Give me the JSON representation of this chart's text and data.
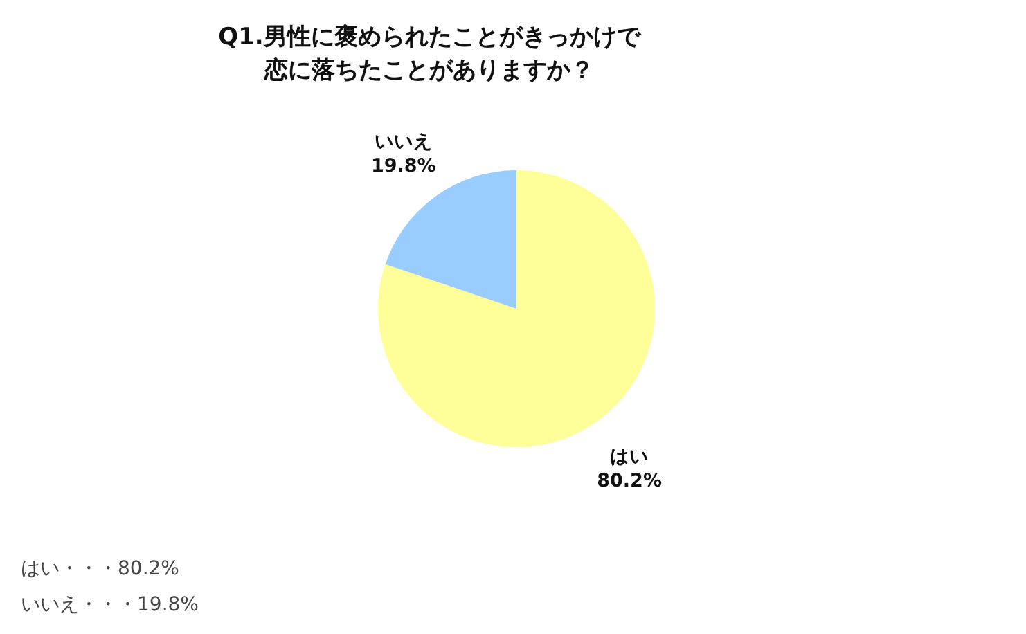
{
  "chart_data": {
    "type": "pie",
    "title": "Q1.男性に褒められたことがきっかけで恋に落ちたことがありますか？",
    "categories": [
      "はい",
      "いいえ"
    ],
    "values": [
      80.2,
      19.8
    ],
    "colors": [
      "#ffff99",
      "#99ccff"
    ],
    "value_labels": [
      "80.2%",
      "19.8%"
    ],
    "annotations": [
      "はい・・・80.2%",
      "いいえ・・・19.8%"
    ]
  }
}
